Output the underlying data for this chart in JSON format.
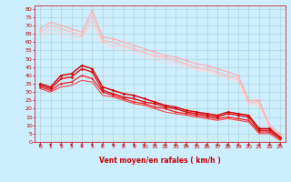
{
  "background_color": "#cceeff",
  "grid_color": "#aacccc",
  "xlim": [
    -0.5,
    23.5
  ],
  "ylim": [
    0,
    82
  ],
  "xticks": [
    0,
    1,
    2,
    3,
    4,
    5,
    6,
    7,
    8,
    9,
    10,
    11,
    12,
    13,
    14,
    15,
    16,
    17,
    18,
    19,
    20,
    21,
    22,
    23
  ],
  "yticks": [
    0,
    5,
    10,
    15,
    20,
    25,
    30,
    35,
    40,
    45,
    50,
    55,
    60,
    65,
    70,
    75,
    80
  ],
  "xlabel": "Vent moyen/en rafales ( km/h )",
  "xlabel_color": "#cc0000",
  "xlabel_fontsize": 5.5,
  "tick_fontsize": 4.5,
  "tick_color": "#cc0000",
  "arrow_color": "#cc0000",
  "lines": [
    {
      "x": [
        0,
        1,
        2,
        3,
        4,
        5,
        6,
        7,
        8,
        9,
        10,
        11,
        12,
        13,
        14,
        15,
        16,
        17,
        18,
        19,
        20,
        21,
        22,
        23
      ],
      "y": [
        68,
        72,
        70,
        68,
        66,
        79,
        63,
        62,
        60,
        58,
        56,
        54,
        52,
        51,
        49,
        47,
        46,
        44,
        42,
        40,
        25,
        25,
        10,
        5
      ],
      "color": "#ffaaaa",
      "linewidth": 0.8,
      "marker": "D",
      "markersize": 1.5,
      "zorder": 2
    },
    {
      "x": [
        0,
        1,
        2,
        3,
        4,
        5,
        6,
        7,
        8,
        9,
        10,
        11,
        12,
        13,
        14,
        15,
        16,
        17,
        18,
        19,
        20,
        21,
        22,
        23
      ],
      "y": [
        66,
        70,
        68,
        66,
        64,
        76,
        61,
        60,
        58,
        56,
        54,
        52,
        51,
        49,
        47,
        45,
        44,
        42,
        40,
        38,
        24,
        24,
        9,
        4
      ],
      "color": "#ffbbbb",
      "linewidth": 0.8,
      "marker": "D",
      "markersize": 1.5,
      "zorder": 2
    },
    {
      "x": [
        0,
        1,
        2,
        3,
        4,
        5,
        6,
        7,
        8,
        9,
        10,
        11,
        12,
        13,
        14,
        15,
        16,
        17,
        18,
        19,
        20,
        21,
        22,
        23
      ],
      "y": [
        64,
        68,
        66,
        64,
        63,
        73,
        60,
        58,
        57,
        55,
        53,
        51,
        50,
        48,
        46,
        44,
        43,
        41,
        39,
        37,
        23,
        23,
        8,
        3
      ],
      "color": "#ffcccc",
      "linewidth": 0.7,
      "marker": null,
      "markersize": 0,
      "zorder": 1
    },
    {
      "x": [
        0,
        1,
        2,
        3,
        4,
        5,
        6,
        7,
        8,
        9,
        10,
        11,
        12,
        13,
        14,
        15,
        16,
        17,
        18,
        19,
        20,
        21,
        22,
        23
      ],
      "y": [
        62,
        66,
        64,
        62,
        61,
        70,
        58,
        57,
        55,
        53,
        51,
        49,
        48,
        46,
        45,
        43,
        42,
        40,
        38,
        36,
        22,
        22,
        7,
        2
      ],
      "color": "#ffdddd",
      "linewidth": 0.7,
      "marker": null,
      "markersize": 0,
      "zorder": 1
    },
    {
      "x": [
        0,
        1,
        2,
        3,
        4,
        5,
        6,
        7,
        8,
        9,
        10,
        11,
        12,
        13,
        14,
        15,
        16,
        17,
        18,
        19,
        20,
        21,
        22,
        23
      ],
      "y": [
        35,
        33,
        40,
        41,
        46,
        44,
        33,
        31,
        29,
        28,
        26,
        24,
        22,
        21,
        19,
        18,
        17,
        16,
        18,
        17,
        16,
        8,
        8,
        3
      ],
      "color": "#cc0000",
      "linewidth": 1.0,
      "marker": "D",
      "markersize": 1.8,
      "zorder": 4
    },
    {
      "x": [
        0,
        1,
        2,
        3,
        4,
        5,
        6,
        7,
        8,
        9,
        10,
        11,
        12,
        13,
        14,
        15,
        16,
        17,
        18,
        19,
        20,
        21,
        22,
        23
      ],
      "y": [
        34,
        32,
        38,
        39,
        44,
        42,
        31,
        29,
        27,
        26,
        24,
        23,
        21,
        20,
        18,
        17,
        16,
        15,
        17,
        16,
        15,
        7,
        7,
        2
      ],
      "color": "#dd1111",
      "linewidth": 1.0,
      "marker": "D",
      "markersize": 1.8,
      "zorder": 4
    },
    {
      "x": [
        0,
        1,
        2,
        3,
        4,
        5,
        6,
        7,
        8,
        9,
        10,
        11,
        12,
        13,
        14,
        15,
        16,
        17,
        18,
        19,
        20,
        21,
        22,
        23
      ],
      "y": [
        33,
        31,
        35,
        36,
        40,
        38,
        30,
        28,
        26,
        24,
        23,
        21,
        20,
        18,
        17,
        16,
        15,
        14,
        15,
        14,
        13,
        6,
        6,
        2
      ],
      "color": "#ee2222",
      "linewidth": 0.9,
      "marker": "D",
      "markersize": 1.5,
      "zorder": 3
    },
    {
      "x": [
        0,
        1,
        2,
        3,
        4,
        5,
        6,
        7,
        8,
        9,
        10,
        11,
        12,
        13,
        14,
        15,
        16,
        17,
        18,
        19,
        20,
        21,
        22,
        23
      ],
      "y": [
        32,
        30,
        33,
        34,
        37,
        36,
        28,
        27,
        25,
        23,
        22,
        20,
        18,
        17,
        16,
        15,
        14,
        13,
        14,
        13,
        12,
        5,
        5,
        1
      ],
      "color": "#ff4444",
      "linewidth": 0.8,
      "marker": null,
      "markersize": 0,
      "zorder": 3
    }
  ]
}
